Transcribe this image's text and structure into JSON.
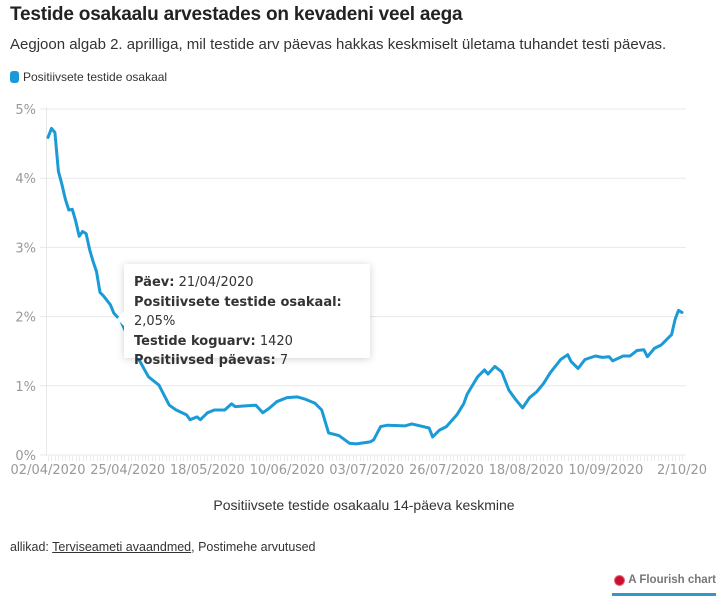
{
  "header": {
    "title": "Testide osakaalu arvestades on kevadeni veel aega",
    "subtitle": "Aegjoon algab 2. aprilliga, mil testide arv päevas hakkas keskmiselt ületama tuhandet testi päevas."
  },
  "legend": {
    "label": "Positiivsete testide osakaal",
    "color": "#1a9bd7"
  },
  "tooltip": {
    "rows": [
      {
        "label": "Päev:",
        "value": "21/04/2020"
      },
      {
        "label": "Positiivsete testide osakaal:",
        "value": "2,05%"
      },
      {
        "label": "Testide koguarv:",
        "value": "1420"
      },
      {
        "label": "Positiivsed päevas:",
        "value": "7"
      }
    ]
  },
  "footer": {
    "source_prefix": "allikad: ",
    "source_link": "Terviseameti avaandmed",
    "source_rest": ", Postimehe arvutused",
    "flourish_label": "A Flourish chart"
  },
  "chart_data": {
    "type": "line",
    "title": "Testide osakaalu arvestades on kevadeni veel aega",
    "xlabel": "Positiivsete testide osakaalu 14-päeva keskmine",
    "ylabel": "",
    "x_start": "02/04/2020",
    "x_unit": "days since 02/04/2020",
    "xlim": [
      0,
      183
    ],
    "ylim": [
      0,
      5
    ],
    "y_ticks": [
      0,
      1,
      2,
      3,
      4,
      5
    ],
    "y_tick_labels": [
      "0%",
      "1%",
      "2%",
      "3%",
      "4%",
      "5%"
    ],
    "x_ticks": [
      0,
      23,
      46,
      69,
      92,
      115,
      138,
      161,
      183
    ],
    "x_tick_labels": [
      "02/04/2020",
      "25/04/2020",
      "18/05/2020",
      "10/06/2020",
      "03/07/2020",
      "26/07/2020",
      "18/08/2020",
      "10/09/2020",
      "2/10/20"
    ],
    "grid": true,
    "legend_position": "top-left",
    "series": [
      {
        "name": "Positiivsete testide osakaal",
        "color": "#1a9bd7",
        "x": [
          0,
          1,
          2,
          3,
          4,
          5,
          6,
          7,
          8,
          9,
          10,
          11,
          12,
          13,
          14,
          15,
          16,
          18,
          19,
          21,
          25,
          29,
          32,
          35,
          37,
          40,
          41,
          43,
          44,
          46,
          48,
          51,
          53,
          54,
          57,
          60,
          62,
          64,
          66,
          69,
          72,
          74,
          77,
          79,
          81,
          84,
          87,
          89,
          93,
          94,
          96,
          98,
          103,
          105,
          110,
          111,
          113,
          115,
          118,
          120,
          121,
          124,
          126,
          127,
          129,
          131,
          133,
          135,
          137,
          139,
          141,
          143,
          145,
          148,
          150,
          151,
          153,
          155,
          158,
          160,
          162,
          163,
          166,
          168,
          170,
          172,
          173,
          175,
          177,
          180,
          181,
          182,
          183
        ],
        "values": [
          4.59,
          4.72,
          4.66,
          4.1,
          3.91,
          3.7,
          3.54,
          3.55,
          3.38,
          3.16,
          3.23,
          3.2,
          2.97,
          2.8,
          2.65,
          2.35,
          2.3,
          2.17,
          2.05,
          1.94,
          1.49,
          1.13,
          1.01,
          0.72,
          0.65,
          0.58,
          0.51,
          0.55,
          0.51,
          0.61,
          0.65,
          0.65,
          0.74,
          0.7,
          0.71,
          0.72,
          0.61,
          0.68,
          0.77,
          0.83,
          0.84,
          0.81,
          0.75,
          0.65,
          0.32,
          0.28,
          0.17,
          0.16,
          0.19,
          0.22,
          0.41,
          0.43,
          0.42,
          0.45,
          0.39,
          0.26,
          0.36,
          0.41,
          0.58,
          0.74,
          0.88,
          1.13,
          1.23,
          1.17,
          1.28,
          1.2,
          0.94,
          0.8,
          0.68,
          0.83,
          0.91,
          1.03,
          1.19,
          1.38,
          1.45,
          1.35,
          1.25,
          1.38,
          1.43,
          1.41,
          1.42,
          1.36,
          1.43,
          1.43,
          1.51,
          1.52,
          1.42,
          1.54,
          1.59,
          1.74,
          1.96,
          2.09,
          2.06
        ]
      }
    ],
    "hover": {
      "x": 19,
      "value": 2.05
    }
  }
}
